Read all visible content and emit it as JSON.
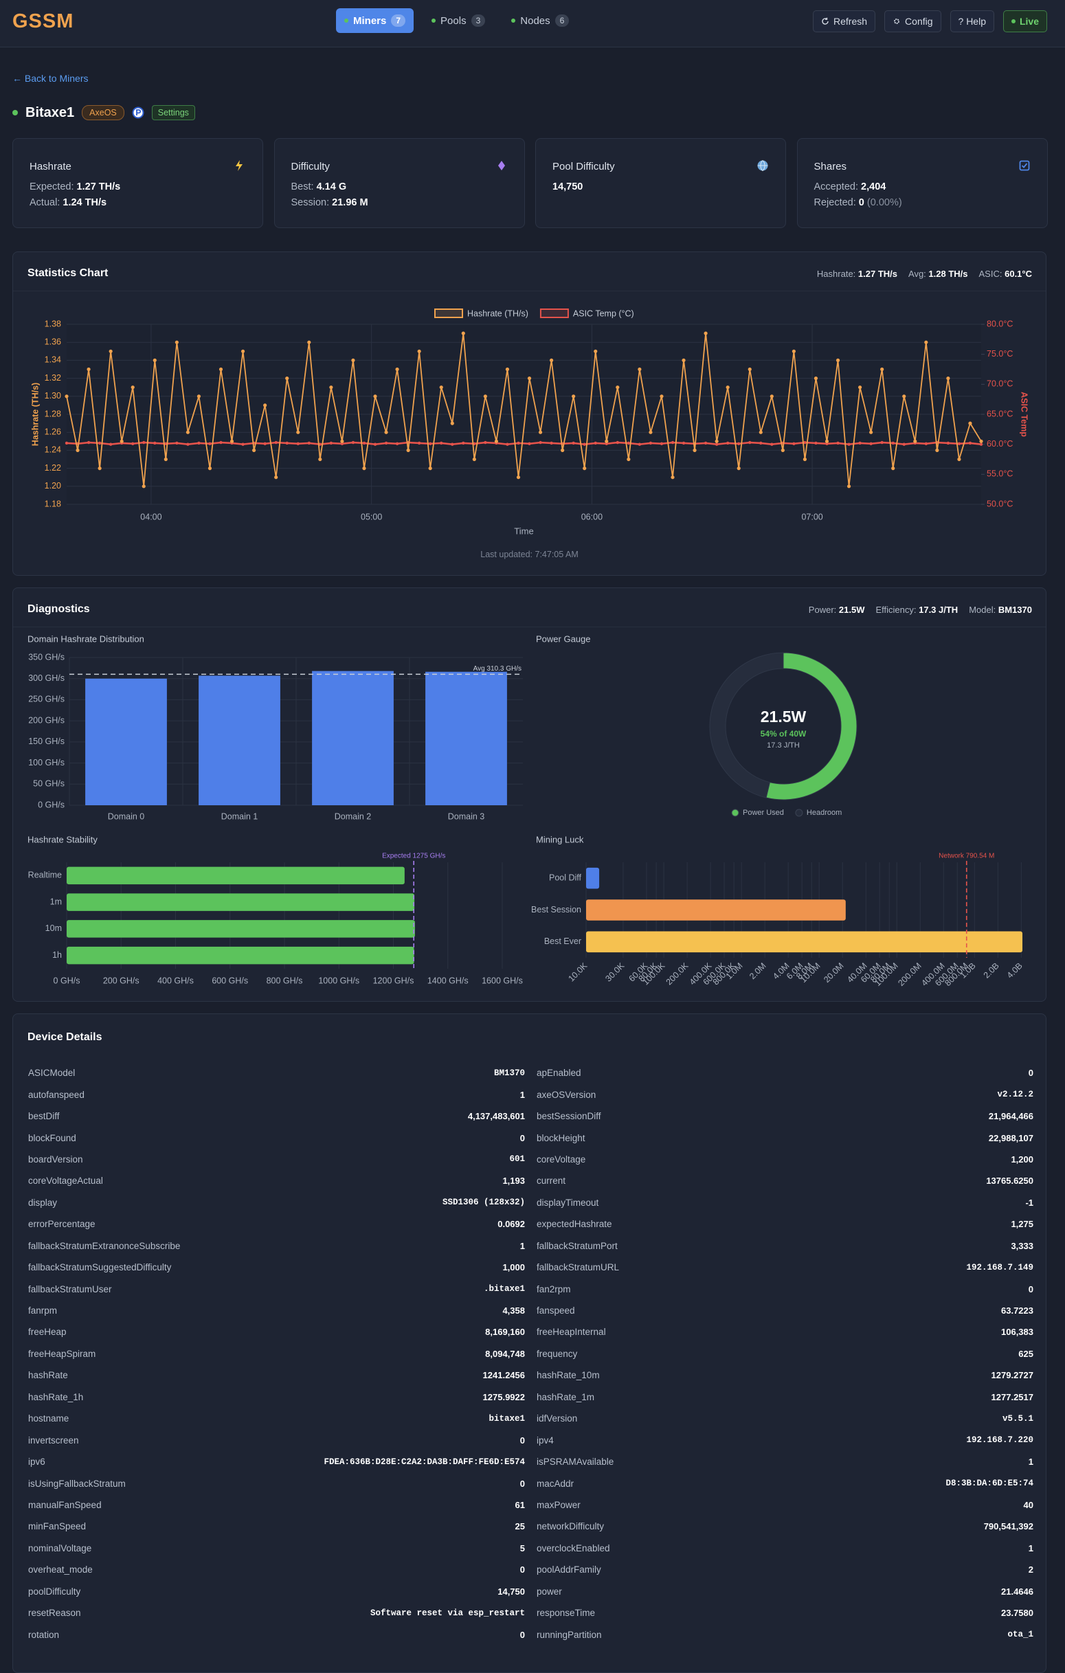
{
  "header": {
    "logo": "GSSM",
    "tabs": [
      {
        "label": "Miners",
        "count": 7
      },
      {
        "label": "Pools",
        "count": 3
      },
      {
        "label": "Nodes",
        "count": 6
      }
    ],
    "buttons": [
      "Refresh",
      "Config",
      "? Help",
      "Live"
    ]
  },
  "back_link": "← Back to Miners",
  "miner": {
    "name": "Bitaxe1",
    "firmware": "AxeOS",
    "settings": "Settings"
  },
  "cards": [
    {
      "title": "Hashrate",
      "rows": [
        {
          "label": "Expected:",
          "value": "1.27 TH/s"
        },
        {
          "label": "Actual:",
          "value": "1.24 TH/s"
        }
      ]
    },
    {
      "title": "Difficulty",
      "rows": [
        {
          "label": "Best:",
          "value": "4.14 G"
        },
        {
          "label": "Session:",
          "value": "21.96 M"
        }
      ]
    },
    {
      "title": "Pool Difficulty",
      "rows": [
        {
          "value": "14,750"
        }
      ]
    },
    {
      "title": "Shares",
      "rows": [
        {
          "label": "Accepted:",
          "value": "2,404"
        },
        {
          "label": "Rejected:",
          "value": "0",
          "note": "(0.00%)"
        }
      ]
    }
  ],
  "statistics": {
    "title": "Statistics Chart",
    "summary": [
      {
        "label": "Hashrate:",
        "value": "1.27 TH/s"
      },
      {
        "label": "Avg:",
        "value": "1.28 TH/s"
      },
      {
        "label": "ASIC:",
        "value": "60.1°C"
      }
    ],
    "updated": "Last updated: 7:47:05 AM"
  },
  "diagnostics": {
    "title": "Diagnostics",
    "summary": [
      {
        "label": "Power:",
        "value": "21.5W"
      },
      {
        "label": "Efficiency:",
        "value": "17.3 J/TH"
      },
      {
        "label": "Model:",
        "value": "BM1370"
      }
    ]
  },
  "chart_data": [
    {
      "type": "line",
      "x": [
        "03:37",
        "03:40",
        "03:43",
        "03:46",
        "03:49",
        "03:52",
        "03:55",
        "03:58",
        "04:01",
        "04:04",
        "04:07",
        "04:10",
        "04:13",
        "04:16",
        "04:19",
        "04:22",
        "04:25",
        "04:28",
        "04:31",
        "04:34",
        "04:37",
        "04:40",
        "04:43",
        "04:46",
        "04:49",
        "04:52",
        "04:55",
        "04:58",
        "05:01",
        "05:04",
        "05:07",
        "05:10",
        "05:13",
        "05:16",
        "05:19",
        "05:22",
        "05:25",
        "05:28",
        "05:31",
        "05:34",
        "05:37",
        "05:40",
        "05:43",
        "05:46",
        "05:49",
        "05:52",
        "05:55",
        "05:58",
        "06:01",
        "06:04",
        "06:07",
        "06:10",
        "06:13",
        "06:16",
        "06:19",
        "06:22",
        "06:25",
        "06:28",
        "06:31",
        "06:34",
        "06:37",
        "06:40",
        "06:43",
        "06:46",
        "06:49",
        "06:52",
        "06:55",
        "06:58",
        "07:01",
        "07:04",
        "07:07",
        "07:10",
        "07:13",
        "07:16",
        "07:19",
        "07:22",
        "07:25",
        "07:28",
        "07:31",
        "07:34",
        "07:37",
        "07:40",
        "07:43",
        "07:46"
      ],
      "xlim": [
        "03:37",
        "07:46"
      ],
      "xticks": [
        "04:00",
        "05:00",
        "06:00",
        "07:00"
      ],
      "xlabel": "Time",
      "ylabel": "Hashrate (TH/s)",
      "y2label": "ASIC Temp",
      "ylim": [
        1.18,
        1.38
      ],
      "yticks": [
        1.18,
        {
          "value": 1.2,
          "label": "1.20"
        },
        1.22,
        1.24,
        1.26,
        1.28,
        {
          "value": 1.3,
          "label": "1.30"
        },
        1.32,
        1.34,
        1.36,
        1.38
      ],
      "y2lim": [
        50,
        80
      ],
      "y2ticks": [
        {
          "value": 50,
          "label": "50.0°C"
        },
        {
          "value": 55,
          "label": "55.0°C"
        },
        {
          "value": 60,
          "label": "60.0°C"
        },
        {
          "value": 65,
          "label": "65.0°C"
        },
        {
          "value": 70,
          "label": "70.0°C"
        },
        {
          "value": 75,
          "label": "75.0°C"
        },
        {
          "value": 80,
          "label": "80.0°C"
        }
      ],
      "grid": true,
      "series": [
        {
          "name": "Hashrate (TH/s)",
          "color": "#f0a24e",
          "values": [
            1.3,
            1.24,
            1.33,
            1.22,
            1.35,
            1.25,
            1.31,
            1.2,
            1.34,
            1.23,
            1.36,
            1.26,
            1.3,
            1.22,
            1.33,
            1.25,
            1.35,
            1.24,
            1.29,
            1.21,
            1.32,
            1.26,
            1.36,
            1.23,
            1.31,
            1.25,
            1.34,
            1.22,
            1.3,
            1.26,
            1.33,
            1.24,
            1.35,
            1.22,
            1.31,
            1.27,
            1.37,
            1.23,
            1.3,
            1.25,
            1.33,
            1.21,
            1.32,
            1.26,
            1.34,
            1.24,
            1.3,
            1.22,
            1.35,
            1.25,
            1.31,
            1.23,
            1.33,
            1.26,
            1.3,
            1.21,
            1.34,
            1.24,
            1.37,
            1.25,
            1.31,
            1.22,
            1.33,
            1.26,
            1.3,
            1.24,
            1.35,
            1.23,
            1.32,
            1.25,
            1.34,
            1.2,
            1.31,
            1.26,
            1.33,
            1.22,
            1.3,
            1.25,
            1.36,
            1.24,
            1.32,
            1.23,
            1.27,
            1.25
          ]
        },
        {
          "name": "ASIC Temp (°C)",
          "color": "#e5534b",
          "axis": "y2",
          "values": [
            60.2,
            60.1,
            60.3,
            60.2,
            60.0,
            60.2,
            60.1,
            60.3,
            60.2,
            60.1,
            60.2,
            60.0,
            60.2,
            60.1,
            60.3,
            60.2,
            60.0,
            60.2,
            60.1,
            60.3,
            60.2,
            60.1,
            60.2,
            60.0,
            60.2,
            60.1,
            60.3,
            60.2,
            60.0,
            60.2,
            60.1,
            60.3,
            60.2,
            60.1,
            60.2,
            60.0,
            60.2,
            60.1,
            60.3,
            60.2,
            60.0,
            60.2,
            60.1,
            60.3,
            60.2,
            60.1,
            60.2,
            60.0,
            60.2,
            60.1,
            60.3,
            60.2,
            60.0,
            60.2,
            60.1,
            60.3,
            60.2,
            60.1,
            60.2,
            60.0,
            60.2,
            60.1,
            60.3,
            60.2,
            60.0,
            60.2,
            60.1,
            60.3,
            60.2,
            60.1,
            60.2,
            60.0,
            60.2,
            60.1,
            60.3,
            60.2,
            60.0,
            60.2,
            60.1,
            60.3,
            60.2,
            60.1,
            60.2,
            60.0
          ]
        }
      ]
    },
    {
      "type": "bar",
      "title": "Domain Hashrate Distribution",
      "categories": [
        "Domain 0",
        "Domain 1",
        "Domain 2",
        "Domain 3"
      ],
      "values": [
        300,
        307,
        318,
        316.2
      ],
      "color": "#4f7fe8",
      "ylim": [
        0,
        350
      ],
      "yticks": [
        {
          "value": 0,
          "label": "0 GH/s"
        },
        {
          "value": 50,
          "label": "50 GH/s"
        },
        {
          "value": 100,
          "label": "100 GH/s"
        },
        {
          "value": 150,
          "label": "150 GH/s"
        },
        {
          "value": 200,
          "label": "200 GH/s"
        },
        {
          "value": 250,
          "label": "250 GH/s"
        },
        {
          "value": 300,
          "label": "300 GH/s"
        },
        {
          "value": 350,
          "label": "350 GH/s"
        }
      ],
      "grid": true,
      "reference_line": {
        "value": 310.3,
        "label": "Avg 310.3 GH/s",
        "color": "#c8cdd6"
      }
    },
    {
      "type": "doughnut",
      "title": "Power Gauge",
      "categories": [
        "Power Used",
        "Headroom"
      ],
      "values": [
        21.5,
        18.5
      ],
      "colors": [
        "#5cc35c",
        "#262d3d"
      ],
      "center_texts": [
        "21.5W",
        "54% of 40W",
        "17.3 J/TH"
      ]
    },
    {
      "type": "hbar",
      "title": "Hashrate Stability",
      "categories": [
        "Realtime",
        "1m",
        "10m",
        "1h"
      ],
      "values": [
        1241.2456,
        1277.2517,
        1279.2727,
        1275.9922
      ],
      "color": "#5cc35c",
      "xlim": [
        0,
        1600
      ],
      "xticks": [
        {
          "value": 0,
          "label": "0 GH/s"
        },
        {
          "value": 200,
          "label": "200 GH/s"
        },
        {
          "value": 400,
          "label": "400 GH/s"
        },
        {
          "value": 600,
          "label": "600 GH/s"
        },
        {
          "value": 800,
          "label": "800 GH/s"
        },
        {
          "value": 1000,
          "label": "1000 GH/s"
        },
        {
          "value": 1200,
          "label": "1200 GH/s"
        },
        {
          "value": 1400,
          "label": "1400 GH/s"
        },
        {
          "value": 1600,
          "label": "1600 GH/s"
        }
      ],
      "grid": true,
      "reference_line": {
        "value": 1275,
        "label": "Expected 1275 GH/s",
        "color": "#a77ef0"
      }
    },
    {
      "type": "hbar",
      "title": "Mining Luck",
      "log_scale": true,
      "xtick_rotation": -45,
      "categories": [
        "Pool Diff",
        "Best Session",
        "Best Ever"
      ],
      "values": [
        14750,
        21964466,
        4137483601
      ],
      "colors": [
        "#4f7fe8",
        "#f0954f",
        "#f5c150"
      ],
      "xlim": [
        10000,
        5500000000
      ],
      "xticks": [
        {
          "value": 10000,
          "label": "10.0K"
        },
        {
          "value": 30000,
          "label": "30.0K"
        },
        {
          "value": 60000,
          "label": "60.0K"
        },
        {
          "value": 80000,
          "label": "80.0K"
        },
        {
          "value": 100000,
          "label": "100.0K"
        },
        {
          "value": 200000,
          "label": "200.0K"
        },
        {
          "value": 400000,
          "label": "400.0K"
        },
        {
          "value": 600000,
          "label": "600.0K"
        },
        {
          "value": 800000,
          "label": "800.0K"
        },
        {
          "value": 1000000,
          "label": "1.0M"
        },
        {
          "value": 2000000,
          "label": "2.0M"
        },
        {
          "value": 4000000,
          "label": "4.0M"
        },
        {
          "value": 6000000,
          "label": "6.0M"
        },
        {
          "value": 8000000,
          "label": "8.0M"
        },
        {
          "value": 10000000,
          "label": "10.0M"
        },
        {
          "value": 20000000,
          "label": "20.0M"
        },
        {
          "value": 40000000,
          "label": "40.0M"
        },
        {
          "value": 60000000,
          "label": "60.0M"
        },
        {
          "value": 80000000,
          "label": "80.0M"
        },
        {
          "value": 100000000,
          "label": "100.0M"
        },
        {
          "value": 200000000,
          "label": "200.0M"
        },
        {
          "value": 400000000,
          "label": "400.0M"
        },
        {
          "value": 600000000,
          "label": "600.0M"
        },
        {
          "value": 800000000,
          "label": "800.0M"
        },
        {
          "value": 1000000000,
          "label": "1.0B"
        },
        {
          "value": 2000000000,
          "label": "2.0B"
        },
        {
          "value": 4000000000,
          "label": "4.0B"
        }
      ],
      "grid": true,
      "reference_line": {
        "value": 790541392,
        "label": "Network 790.54 M",
        "color": "#e5534b"
      }
    }
  ],
  "device_details": {
    "title": "Device Details",
    "items": [
      {
        "key": "ASICModel",
        "value": "BM1370",
        "mono": true
      },
      {
        "key": "apEnabled",
        "value": "0"
      },
      {
        "key": "autofanspeed",
        "value": "1"
      },
      {
        "key": "axeOSVersion",
        "value": "v2.12.2",
        "mono": true
      },
      {
        "key": "bestDiff",
        "value": "4,137,483,601"
      },
      {
        "key": "bestSessionDiff",
        "value": "21,964,466"
      },
      {
        "key": "blockFound",
        "value": "0"
      },
      {
        "key": "blockHeight",
        "value": "22,988,107"
      },
      {
        "key": "boardVersion",
        "value": "601",
        "mono": true
      },
      {
        "key": "coreVoltage",
        "value": "1,200"
      },
      {
        "key": "coreVoltageActual",
        "value": "1,193"
      },
      {
        "key": "current",
        "value": "13765.6250"
      },
      {
        "key": "display",
        "value": "SSD1306 (128x32)",
        "mono": true
      },
      {
        "key": "displayTimeout",
        "value": "-1"
      },
      {
        "key": "errorPercentage",
        "value": "0.0692"
      },
      {
        "key": "expectedHashrate",
        "value": "1,275"
      },
      {
        "key": "fallbackStratumExtranonceSubscribe",
        "value": "1"
      },
      {
        "key": "fallbackStratumPort",
        "value": "3,333"
      },
      {
        "key": "fallbackStratumSuggestedDifficulty",
        "value": "1,000"
      },
      {
        "key": "fallbackStratumURL",
        "value": "192.168.7.149",
        "mono": true
      },
      {
        "key": "fallbackStratumUser",
        "value": ".bitaxe1",
        "mono": true
      },
      {
        "key": "fan2rpm",
        "value": "0"
      },
      {
        "key": "fanrpm",
        "value": "4,358"
      },
      {
        "key": "fanspeed",
        "value": "63.7223"
      },
      {
        "key": "freeHeap",
        "value": "8,169,160"
      },
      {
        "key": "freeHeapInternal",
        "value": "106,383"
      },
      {
        "key": "freeHeapSpiram",
        "value": "8,094,748"
      },
      {
        "key": "frequency",
        "value": "625"
      },
      {
        "key": "hashRate",
        "value": "1241.2456"
      },
      {
        "key": "hashRate_10m",
        "value": "1279.2727"
      },
      {
        "key": "hashRate_1h",
        "value": "1275.9922"
      },
      {
        "key": "hashRate_1m",
        "value": "1277.2517"
      },
      {
        "key": "hostname",
        "value": "bitaxe1",
        "mono": true
      },
      {
        "key": "idfVersion",
        "value": "v5.5.1",
        "mono": true
      },
      {
        "key": "invertscreen",
        "value": "0"
      },
      {
        "key": "ipv4",
        "value": "192.168.7.220",
        "mono": true
      },
      {
        "key": "ipv6",
        "value": "FDEA:636B:D28E:C2A2:DA3B:DAFF:FE6D:E574",
        "mono": true
      },
      {
        "key": "isPSRAMAvailable",
        "value": "1"
      },
      {
        "key": "isUsingFallbackStratum",
        "value": "0"
      },
      {
        "key": "macAddr",
        "value": "D8:3B:DA:6D:E5:74",
        "mono": true
      },
      {
        "key": "manualFanSpeed",
        "value": "61"
      },
      {
        "key": "maxPower",
        "value": "40"
      },
      {
        "key": "minFanSpeed",
        "value": "25"
      },
      {
        "key": "networkDifficulty",
        "value": "790,541,392"
      },
      {
        "key": "nominalVoltage",
        "value": "5"
      },
      {
        "key": "overclockEnabled",
        "value": "1"
      },
      {
        "key": "overheat_mode",
        "value": "0"
      },
      {
        "key": "poolAddrFamily",
        "value": "2"
      },
      {
        "key": "poolDifficulty",
        "value": "14,750"
      },
      {
        "key": "power",
        "value": "21.4646"
      },
      {
        "key": "resetReason",
        "value": "Software reset via esp_restart",
        "mono": true
      },
      {
        "key": "responseTime",
        "value": "23.7580"
      },
      {
        "key": "rotation",
        "value": "0"
      },
      {
        "key": "runningPartition",
        "value": "ota_1",
        "mono": true
      }
    ]
  }
}
